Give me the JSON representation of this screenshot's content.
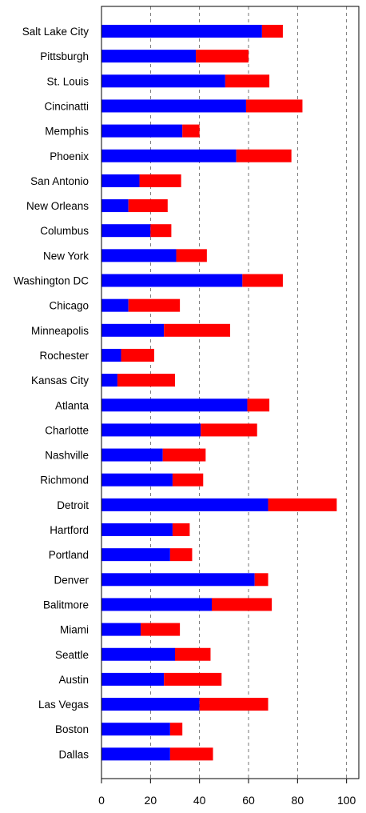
{
  "chart_data": {
    "type": "bar",
    "orientation": "horizontal",
    "stacked": true,
    "categories": [
      "Salt Lake City",
      "Pittsburgh",
      "St. Louis",
      "Cincinatti",
      "Memphis",
      "Phoenix",
      "San Antonio",
      "New Orleans",
      "Columbus",
      "New York",
      "Washington DC",
      "Chicago",
      "Minneapolis",
      "Rochester",
      "Kansas City",
      "Atlanta",
      "Charlotte",
      "Nashville",
      "Richmond",
      "Detroit",
      "Hartford",
      "Portland",
      "Denver",
      "Balitmore",
      "Miami",
      "Seattle",
      "Austin",
      "Las Vegas",
      "Boston",
      "Dallas"
    ],
    "series": [
      {
        "color": "#0000ff",
        "values": [
          65.5,
          38.5,
          50.5,
          59,
          33,
          55,
          15.5,
          11,
          20,
          30.5,
          57.5,
          11,
          25.5,
          8,
          6.5,
          59.5,
          40.5,
          25,
          29,
          68,
          29,
          28,
          62.5,
          45,
          16,
          30,
          25.5,
          40,
          28,
          28
        ]
      },
      {
        "color": "#ff0000",
        "values": [
          8.5,
          21.5,
          18,
          23,
          7,
          22.5,
          17,
          16,
          8.5,
          12.5,
          16.5,
          21,
          27,
          13.5,
          23.5,
          9,
          23,
          17.5,
          12.5,
          28,
          7,
          9,
          5.5,
          24.5,
          16,
          14.5,
          23.5,
          28,
          5,
          17.5
        ]
      }
    ],
    "xlim": [
      0,
      105
    ],
    "xticks": [
      0,
      20,
      40,
      60,
      80,
      100
    ],
    "grid": "x dashed at 20, 40, 60, 80, 100"
  }
}
